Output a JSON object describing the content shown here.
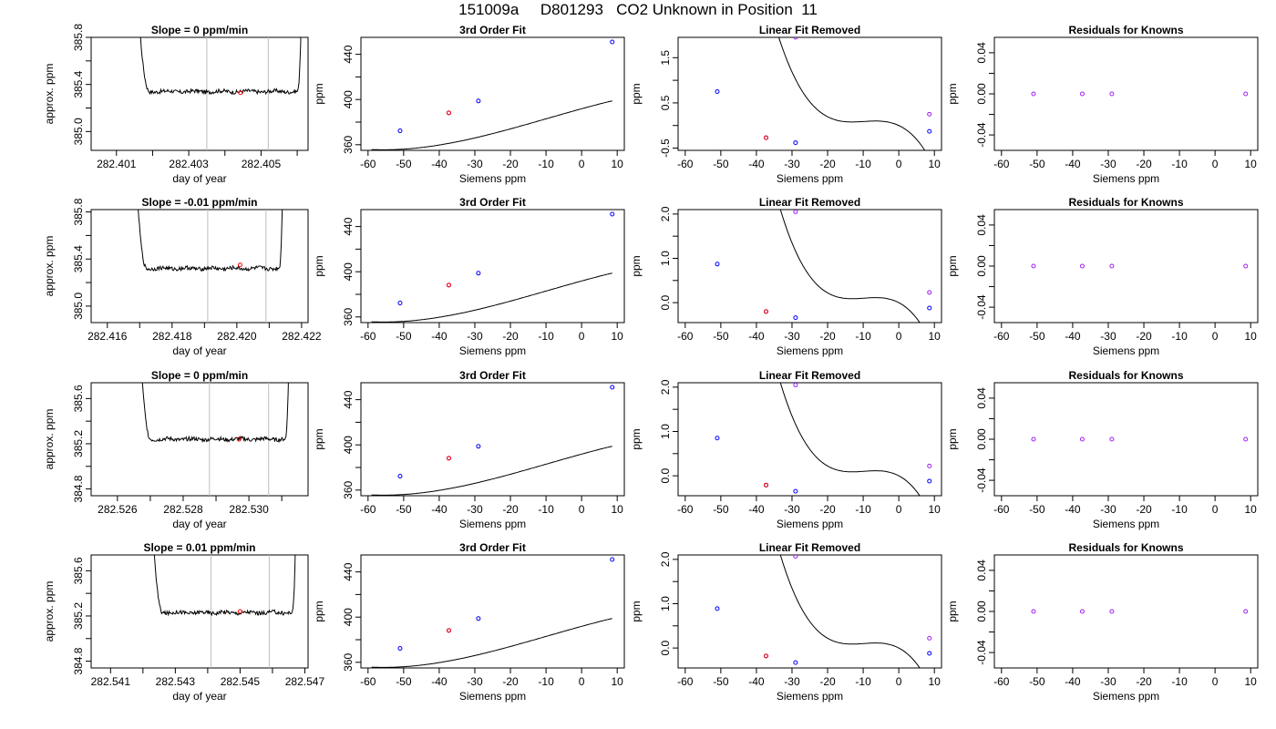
{
  "page": {
    "title": "151009a     D801293   CO2 Unknown in Position  11"
  },
  "colors": {
    "trace": "#000000",
    "knowns": "#0000ff",
    "unknown": "#ff0000",
    "residual_point": "#a020f0",
    "selection_lines": "#bebebe"
  },
  "chart_data": [
    {
      "type": "line",
      "row": 0,
      "col": 0,
      "title": "Slope =  0  ppm/min",
      "xlabel": "day of year",
      "ylabel": "approx. ppm",
      "xlim": [
        282.4003,
        282.4063
      ],
      "ylim": [
        384.84,
        385.8
      ],
      "xticks": [
        282.401,
        282.403,
        282.405
      ],
      "xtick_labels": [
        "282.401",
        "282.403",
        "282.405"
      ],
      "xminor": [
        282.402,
        282.404,
        282.406
      ],
      "yticks": [
        385.0,
        385.4,
        385.8
      ],
      "ytick_labels": [
        "385.0",
        "385.4",
        "385.8"
      ],
      "yminor": [
        385.2,
        385.6
      ],
      "trace_range": [
        282.4015,
        282.4062
      ],
      "trace_level": 385.34,
      "selection_lines": [
        282.4035,
        282.4052
      ],
      "unknown_point": {
        "x": 282.40443,
        "y": 385.33
      }
    },
    {
      "type": "scatter",
      "row": 0,
      "col": 1,
      "title": "3rd Order Fit",
      "xlabel": "Siemens ppm",
      "ylabel": "ppm",
      "xlim": [
        -62,
        12
      ],
      "ylim": [
        355,
        455
      ],
      "xticks": [
        -60,
        -50,
        -40,
        -30,
        -20,
        -10,
        0,
        10
      ],
      "xtick_labels": [
        "-60",
        "-50",
        "-40",
        "-30",
        "-20",
        "-10",
        "0",
        "10"
      ],
      "yticks": [
        360,
        400,
        440
      ],
      "ytick_labels": [
        "360",
        "400",
        "440"
      ],
      "yminor": [
        380,
        420
      ],
      "curve": {
        "x0": -59,
        "x1": 8.6,
        "linear": [
          391.8,
          0.9
        ],
        "cubic": [
          -0.000144,
          -0.00422,
          -0.0365,
          0
        ]
      },
      "knowns": [
        {
          "x": -51,
          "y": 372.3
        },
        {
          "x": -37.3,
          "y": 388.2
        },
        {
          "x": -29,
          "y": 398.7
        },
        {
          "x": 8.6,
          "y": 451.0
        }
      ],
      "unknown": {
        "x": -37.3,
        "y": 388.2
      }
    },
    {
      "type": "scatter",
      "row": 0,
      "col": 2,
      "title": "Linear Fit Removed",
      "xlabel": "Siemens ppm",
      "ylabel": "ppm",
      "xlim": [
        -62,
        12
      ],
      "ylim": [
        -0.55,
        1.95
      ],
      "xticks": [
        -60,
        -50,
        -40,
        -30,
        -20,
        -10,
        0,
        10
      ],
      "xtick_labels": [
        "-60",
        "-50",
        "-40",
        "-30",
        "-20",
        "-10",
        "0",
        "10"
      ],
      "yticks": [
        -0.5,
        0.5,
        1.5
      ],
      "ytick_labels": [
        "-0.5",
        "0.5",
        "1.5"
      ],
      "yminor": [
        0.0,
        1.0
      ],
      "curve": {
        "x0": -59,
        "x1": 8.6,
        "cubic": [
          -0.000144,
          -0.00422,
          -0.0365,
          0
        ]
      },
      "knowns": [
        {
          "x": -51,
          "y": 0.75
        },
        {
          "x": -37.3,
          "y": -0.27
        },
        {
          "x": -29,
          "y": -0.38
        },
        {
          "x": 8.6,
          "y": -0.13
        }
      ],
      "unknown": {
        "x": -37.3,
        "y": -0.27
      },
      "residuals": [
        {
          "x": -29,
          "y": 1.95
        },
        {
          "x": 8.6,
          "y": 0.25
        }
      ]
    },
    {
      "type": "scatter",
      "row": 0,
      "col": 3,
      "title": "Residuals for Knowns",
      "xlabel": "Siemens ppm",
      "ylabel": "ppm",
      "xlim": [
        -62,
        12
      ],
      "ylim": [
        -0.055,
        0.055
      ],
      "xticks": [
        -60,
        -50,
        -40,
        -30,
        -20,
        -10,
        0,
        10
      ],
      "xtick_labels": [
        "-60",
        "-50",
        "-40",
        "-30",
        "-20",
        "-10",
        "0",
        "10"
      ],
      "yticks": [
        -0.04,
        0.0,
        0.04
      ],
      "ytick_labels": [
        "-0.04",
        "0.00",
        "0.04"
      ],
      "yminor": [
        -0.02,
        0.02
      ],
      "residuals": [
        {
          "x": -51,
          "y": 0
        },
        {
          "x": -37.3,
          "y": 0
        },
        {
          "x": -29,
          "y": 0
        },
        {
          "x": 8.6,
          "y": 0
        }
      ]
    },
    {
      "type": "line",
      "row": 1,
      "col": 0,
      "title": "Slope =  -0.01  ppm/min",
      "xlabel": "day of year",
      "ylabel": "approx. ppm",
      "xlim": [
        282.4155,
        282.4222
      ],
      "ylim": [
        384.86,
        385.82
      ],
      "xticks": [
        282.416,
        282.418,
        282.42,
        282.422
      ],
      "xtick_labels": [
        "282.416",
        "282.418",
        "282.420",
        "282.422"
      ],
      "xminor": [
        282.417,
        282.419,
        282.421
      ],
      "yticks": [
        385.0,
        385.4,
        385.8
      ],
      "ytick_labels": [
        "385.0",
        "385.4",
        "385.8"
      ],
      "yminor": [
        385.2,
        385.6
      ],
      "trace_range": [
        282.4168,
        282.4215
      ],
      "trace_level": 385.32,
      "selection_lines": [
        282.4191,
        282.4209
      ],
      "unknown_point": {
        "x": 282.4201,
        "y": 385.35
      }
    },
    {
      "type": "scatter",
      "row": 1,
      "col": 1,
      "title": "3rd Order Fit",
      "xlabel": "Siemens ppm",
      "ylabel": "ppm",
      "xlim": [
        -62,
        12
      ],
      "ylim": [
        355,
        455
      ],
      "xticks": [
        -60,
        -50,
        -40,
        -30,
        -20,
        -10,
        0,
        10
      ],
      "xtick_labels": [
        "-60",
        "-50",
        "-40",
        "-30",
        "-20",
        "-10",
        "0",
        "10"
      ],
      "yticks": [
        360,
        400,
        440
      ],
      "ytick_labels": [
        "360",
        "400",
        "440"
      ],
      "yminor": [
        380,
        420
      ],
      "curve": {
        "x0": -59,
        "x1": 8.6,
        "linear": [
          391.8,
          0.9
        ],
        "cubic": [
          -0.000144,
          -0.00422,
          -0.0365,
          0
        ]
      },
      "knowns": [
        {
          "x": -51,
          "y": 372.3
        },
        {
          "x": -37.3,
          "y": 388.2
        },
        {
          "x": -29,
          "y": 398.7
        },
        {
          "x": 8.6,
          "y": 451.0
        }
      ],
      "unknown": {
        "x": -37.3,
        "y": 388.2
      }
    },
    {
      "type": "scatter",
      "row": 1,
      "col": 2,
      "title": "Linear Fit Removed",
      "xlabel": "Siemens ppm",
      "ylabel": "ppm",
      "xlim": [
        -62,
        12
      ],
      "ylim": [
        -0.45,
        2.1
      ],
      "xticks": [
        -60,
        -50,
        -40,
        -30,
        -20,
        -10,
        0,
        10
      ],
      "xtick_labels": [
        "-60",
        "-50",
        "-40",
        "-30",
        "-20",
        "-10",
        "0",
        "10"
      ],
      "yticks": [
        0.0,
        1.0,
        2.0
      ],
      "ytick_labels": [
        "0.0",
        "1.0",
        "2.0"
      ],
      "yminor": [
        0.5,
        1.5
      ],
      "curve": {
        "x0": -59,
        "x1": 8.6,
        "cubic": [
          -0.000165,
          -0.00485,
          -0.042,
          0
        ]
      },
      "knowns": [
        {
          "x": -51,
          "y": 0.87
        },
        {
          "x": -37.3,
          "y": -0.2
        },
        {
          "x": -29,
          "y": -0.34
        },
        {
          "x": 8.6,
          "y": -0.12
        }
      ],
      "unknown": {
        "x": -37.3,
        "y": -0.2
      },
      "residuals": [
        {
          "x": -29,
          "y": 2.05
        },
        {
          "x": 8.6,
          "y": 0.23
        }
      ]
    },
    {
      "type": "scatter",
      "row": 1,
      "col": 3,
      "title": "Residuals for Knowns",
      "xlabel": "Siemens ppm",
      "ylabel": "ppm",
      "xlim": [
        -62,
        12
      ],
      "ylim": [
        -0.055,
        0.055
      ],
      "xticks": [
        -60,
        -50,
        -40,
        -30,
        -20,
        -10,
        0,
        10
      ],
      "xtick_labels": [
        "-60",
        "-50",
        "-40",
        "-30",
        "-20",
        "-10",
        "0",
        "10"
      ],
      "yticks": [
        -0.04,
        0.0,
        0.04
      ],
      "ytick_labels": [
        "-0.04",
        "0.00",
        "0.04"
      ],
      "yminor": [
        -0.02,
        0.02
      ],
      "residuals": [
        {
          "x": -51,
          "y": 0
        },
        {
          "x": -37.3,
          "y": 0
        },
        {
          "x": -29,
          "y": 0
        },
        {
          "x": 8.6,
          "y": 0
        }
      ]
    },
    {
      "type": "line",
      "row": 2,
      "col": 0,
      "title": "Slope =  0  ppm/min",
      "xlabel": "day of year",
      "ylabel": "approx. ppm",
      "xlim": [
        282.5252,
        282.5318
      ],
      "ylim": [
        384.74,
        385.74
      ],
      "xticks": [
        282.526,
        282.528,
        282.53
      ],
      "xtick_labels": [
        "282.526",
        "282.528",
        "282.530"
      ],
      "xminor": [
        282.527,
        282.529,
        282.531
      ],
      "yticks": [
        384.8,
        385.2,
        385.6
      ],
      "ytick_labels": [
        "384.8",
        "385.2",
        "385.6"
      ],
      "yminor": [
        385.0,
        385.4
      ],
      "trace_range": [
        282.5266,
        282.5313
      ],
      "trace_level": 385.24,
      "selection_lines": [
        282.5288,
        282.5306
      ],
      "unknown_point": {
        "x": 282.5297,
        "y": 385.24
      }
    },
    {
      "type": "scatter",
      "row": 2,
      "col": 1,
      "title": "3rd Order Fit",
      "xlabel": "Siemens ppm",
      "ylabel": "ppm",
      "xlim": [
        -62,
        12
      ],
      "ylim": [
        355,
        455
      ],
      "xticks": [
        -60,
        -50,
        -40,
        -30,
        -20,
        -10,
        0,
        10
      ],
      "xtick_labels": [
        "-60",
        "-50",
        "-40",
        "-30",
        "-20",
        "-10",
        "0",
        "10"
      ],
      "yticks": [
        360,
        400,
        440
      ],
      "ytick_labels": [
        "360",
        "400",
        "440"
      ],
      "yminor": [
        380,
        420
      ],
      "curve": {
        "x0": -59,
        "x1": 8.6,
        "linear": [
          391.8,
          0.9
        ],
        "cubic": [
          -0.000144,
          -0.00422,
          -0.0365,
          0
        ]
      },
      "knowns": [
        {
          "x": -51,
          "y": 372.3
        },
        {
          "x": -37.3,
          "y": 388.2
        },
        {
          "x": -29,
          "y": 398.7
        },
        {
          "x": 8.6,
          "y": 451.0
        }
      ],
      "unknown": {
        "x": -37.3,
        "y": 388.2
      }
    },
    {
      "type": "scatter",
      "row": 2,
      "col": 2,
      "title": "Linear Fit Removed",
      "xlabel": "Siemens ppm",
      "ylabel": "ppm",
      "xlim": [
        -62,
        12
      ],
      "ylim": [
        -0.45,
        2.1
      ],
      "xticks": [
        -60,
        -50,
        -40,
        -30,
        -20,
        -10,
        0,
        10
      ],
      "xtick_labels": [
        "-60",
        "-50",
        "-40",
        "-30",
        "-20",
        "-10",
        "0",
        "10"
      ],
      "yticks": [
        0.0,
        1.0,
        2.0
      ],
      "ytick_labels": [
        "0.0",
        "1.0",
        "2.0"
      ],
      "yminor": [
        0.5,
        1.5
      ],
      "curve": {
        "x0": -59,
        "x1": 8.6,
        "cubic": [
          -0.000165,
          -0.00485,
          -0.042,
          0
        ]
      },
      "knowns": [
        {
          "x": -51,
          "y": 0.85
        },
        {
          "x": -37.3,
          "y": -0.21
        },
        {
          "x": -29,
          "y": -0.35
        },
        {
          "x": 8.6,
          "y": -0.12
        }
      ],
      "unknown": {
        "x": -37.3,
        "y": -0.21
      },
      "residuals": [
        {
          "x": -29,
          "y": 2.05
        },
        {
          "x": 8.6,
          "y": 0.22
        }
      ]
    },
    {
      "type": "scatter",
      "row": 2,
      "col": 3,
      "title": "Residuals for Knowns",
      "xlabel": "Siemens ppm",
      "ylabel": "ppm",
      "xlim": [
        -62,
        12
      ],
      "ylim": [
        -0.055,
        0.055
      ],
      "xticks": [
        -60,
        -50,
        -40,
        -30,
        -20,
        -10,
        0,
        10
      ],
      "xtick_labels": [
        "-60",
        "-50",
        "-40",
        "-30",
        "-20",
        "-10",
        "0",
        "10"
      ],
      "yticks": [
        -0.04,
        0.0,
        0.04
      ],
      "ytick_labels": [
        "-0.04",
        "0.00",
        "0.04"
      ],
      "yminor": [
        -0.02,
        0.02
      ],
      "residuals": [
        {
          "x": -51,
          "y": 0
        },
        {
          "x": -37.3,
          "y": 0
        },
        {
          "x": -29,
          "y": 0
        },
        {
          "x": 8.6,
          "y": 0
        }
      ]
    },
    {
      "type": "line",
      "row": 3,
      "col": 0,
      "title": "Slope =  0.01  ppm/min",
      "xlabel": "day of year",
      "ylabel": "approx. ppm",
      "xlim": [
        282.5404,
        282.5471
      ],
      "ylim": [
        384.74,
        385.74
      ],
      "xticks": [
        282.541,
        282.543,
        282.545,
        282.547
      ],
      "xtick_labels": [
        "282.541",
        "282.543",
        "282.545",
        "282.547"
      ],
      "xminor": [
        282.542,
        282.544,
        282.546
      ],
      "yticks": [
        384.8,
        385.2,
        385.6
      ],
      "ytick_labels": [
        "384.8",
        "385.2",
        "385.6"
      ],
      "yminor": [
        385.0,
        385.4
      ],
      "trace_range": [
        282.5422,
        282.5468
      ],
      "trace_level": 385.23,
      "selection_lines": [
        282.5441,
        282.5459
      ],
      "unknown_point": {
        "x": 282.545,
        "y": 385.24
      }
    },
    {
      "type": "scatter",
      "row": 3,
      "col": 1,
      "title": "3rd Order Fit",
      "xlabel": "Siemens ppm",
      "ylabel": "ppm",
      "xlim": [
        -62,
        12
      ],
      "ylim": [
        355,
        455
      ],
      "xticks": [
        -60,
        -50,
        -40,
        -30,
        -20,
        -10,
        0,
        10
      ],
      "xtick_labels": [
        "-60",
        "-50",
        "-40",
        "-30",
        "-20",
        "-10",
        "0",
        "10"
      ],
      "yticks": [
        360,
        400,
        440
      ],
      "ytick_labels": [
        "360",
        "400",
        "440"
      ],
      "yminor": [
        380,
        420
      ],
      "curve": {
        "x0": -59,
        "x1": 8.6,
        "linear": [
          391.8,
          0.9
        ],
        "cubic": [
          -0.000144,
          -0.00422,
          -0.0365,
          0
        ]
      },
      "knowns": [
        {
          "x": -51,
          "y": 372.3
        },
        {
          "x": -37.3,
          "y": 388.2
        },
        {
          "x": -29,
          "y": 398.7
        },
        {
          "x": 8.6,
          "y": 451.0
        }
      ],
      "unknown": {
        "x": -37.3,
        "y": 388.2
      }
    },
    {
      "type": "scatter",
      "row": 3,
      "col": 2,
      "title": "Linear Fit Removed",
      "xlabel": "Siemens ppm",
      "ylabel": "ppm",
      "xlim": [
        -62,
        12
      ],
      "ylim": [
        -0.45,
        2.1
      ],
      "xticks": [
        -60,
        -50,
        -40,
        -30,
        -20,
        -10,
        0,
        10
      ],
      "xtick_labels": [
        "-60",
        "-50",
        "-40",
        "-30",
        "-20",
        "-10",
        "0",
        "10"
      ],
      "yticks": [
        0.0,
        1.0,
        2.0
      ],
      "ytick_labels": [
        "0.0",
        "1.0",
        "2.0"
      ],
      "yminor": [
        0.5,
        1.5
      ],
      "curve": {
        "x0": -59,
        "x1": 8.6,
        "cubic": [
          -0.000165,
          -0.00485,
          -0.042,
          0
        ]
      },
      "knowns": [
        {
          "x": -51,
          "y": 0.89
        },
        {
          "x": -37.3,
          "y": -0.18
        },
        {
          "x": -29,
          "y": -0.33
        },
        {
          "x": 8.6,
          "y": -0.12
        }
      ],
      "unknown": {
        "x": -37.3,
        "y": -0.18
      },
      "residuals": [
        {
          "x": -29,
          "y": 2.07
        },
        {
          "x": 8.6,
          "y": 0.22
        }
      ]
    },
    {
      "type": "scatter",
      "row": 3,
      "col": 3,
      "title": "Residuals for Knowns",
      "xlabel": "Siemens ppm",
      "ylabel": "ppm",
      "xlim": [
        -62,
        12
      ],
      "ylim": [
        -0.055,
        0.055
      ],
      "xticks": [
        -60,
        -50,
        -40,
        -30,
        -20,
        -10,
        0,
        10
      ],
      "xtick_labels": [
        "-60",
        "-50",
        "-40",
        "-30",
        "-20",
        "-10",
        "0",
        "10"
      ],
      "yticks": [
        -0.04,
        0.0,
        0.04
      ],
      "ytick_labels": [
        "-0.04",
        "0.00",
        "0.04"
      ],
      "yminor": [
        -0.02,
        0.02
      ],
      "residuals": [
        {
          "x": -51,
          "y": 0
        },
        {
          "x": -37.3,
          "y": 0
        },
        {
          "x": -29,
          "y": 0
        },
        {
          "x": 8.6,
          "y": 0
        }
      ]
    }
  ]
}
